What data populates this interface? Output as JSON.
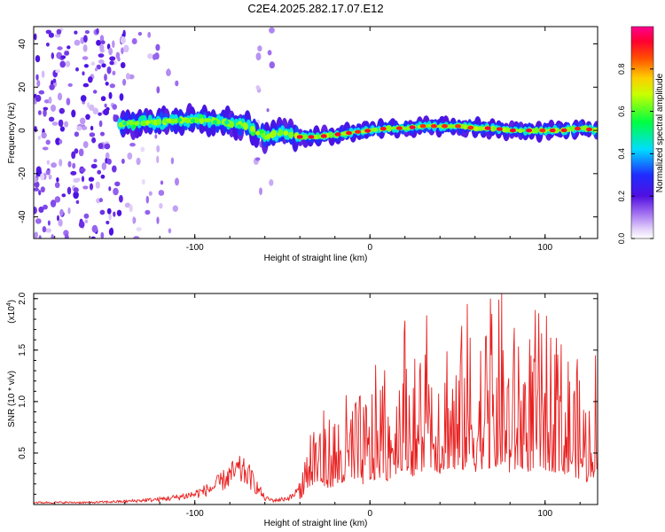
{
  "title": "C2E4.2025.282.17.07.E12",
  "chart_data": [
    {
      "type": "heatmap",
      "xlabel": "Height of straight line (km)",
      "ylabel": "Frequency (Hz)",
      "xlim": [
        -192,
        130
      ],
      "ylim": [
        -50,
        48
      ],
      "xticks": [
        -100,
        0,
        100
      ],
      "yticks": [
        -40,
        -20,
        0,
        20,
        40
      ],
      "ridge": {
        "x": [
          -142,
          -120,
          -100,
          -85,
          -70,
          -60,
          -50,
          -40,
          -30,
          -20,
          -10,
          0,
          10,
          20,
          30,
          40,
          50,
          60,
          70,
          80,
          90,
          100,
          110,
          120,
          130
        ],
        "freq": [
          3,
          4,
          5,
          4,
          2,
          -3,
          -1,
          -3,
          -3,
          -2,
          -1,
          0,
          1,
          1,
          2,
          2,
          2,
          1,
          1,
          0,
          0,
          0,
          0,
          1,
          0
        ]
      },
      "colorbar": {
        "label": "Normalized spectral amplitude",
        "ticks": [
          "0.0",
          "0.2",
          "0.4",
          "0.6",
          "0.8"
        ],
        "range": [
          0,
          1
        ],
        "colors": [
          "#ffffff",
          "#c9a8f0",
          "#7a2cf0",
          "#2020ff",
          "#00ffff",
          "#00ff00",
          "#ffff00",
          "#ff8000",
          "#ff0000",
          "#ff00aa"
        ]
      }
    },
    {
      "type": "line",
      "xlabel": "Height of straight line (km)",
      "ylabel": "SNR (10 * v/v)",
      "multiplier": "(x10",
      "multiplier_exp": "4",
      "multiplier_close": ")",
      "xlim": [
        -192,
        130
      ],
      "ylim": [
        0,
        2.05
      ],
      "xticks": [
        -100,
        0,
        100
      ],
      "yticks": [
        "0.5",
        "1.0",
        "1.5",
        "2.0"
      ],
      "series": [
        {
          "name": "SNR",
          "color": "#e82020",
          "x": [
            -192,
            -160,
            -140,
            -120,
            -110,
            -100,
            -90,
            -85,
            -80,
            -75,
            -70,
            -65,
            -60,
            -55,
            -50,
            -45,
            -40,
            -35,
            -30,
            -25,
            -20,
            -15,
            -10,
            -5,
            0,
            5,
            10,
            15,
            20,
            25,
            30,
            35,
            40,
            45,
            50,
            55,
            60,
            65,
            70,
            75,
            80,
            85,
            90,
            95,
            100,
            105,
            110,
            115,
            120,
            125,
            130
          ],
          "values": [
            0.02,
            0.02,
            0.03,
            0.05,
            0.07,
            0.1,
            0.16,
            0.22,
            0.28,
            0.33,
            0.3,
            0.18,
            0.06,
            0.04,
            0.05,
            0.07,
            0.15,
            0.45,
            0.55,
            0.45,
            0.5,
            0.55,
            0.6,
            0.55,
            0.6,
            0.75,
            0.65,
            0.85,
            1.0,
            0.75,
            0.9,
            1.0,
            0.85,
            1.0,
            0.8,
            1.05,
            0.9,
            1.0,
            0.95,
            1.1,
            0.85,
            1.0,
            0.9,
            1.0,
            0.95,
            0.9,
            0.85,
            0.8,
            0.7,
            0.6,
            0.9
          ]
        }
      ]
    }
  ]
}
